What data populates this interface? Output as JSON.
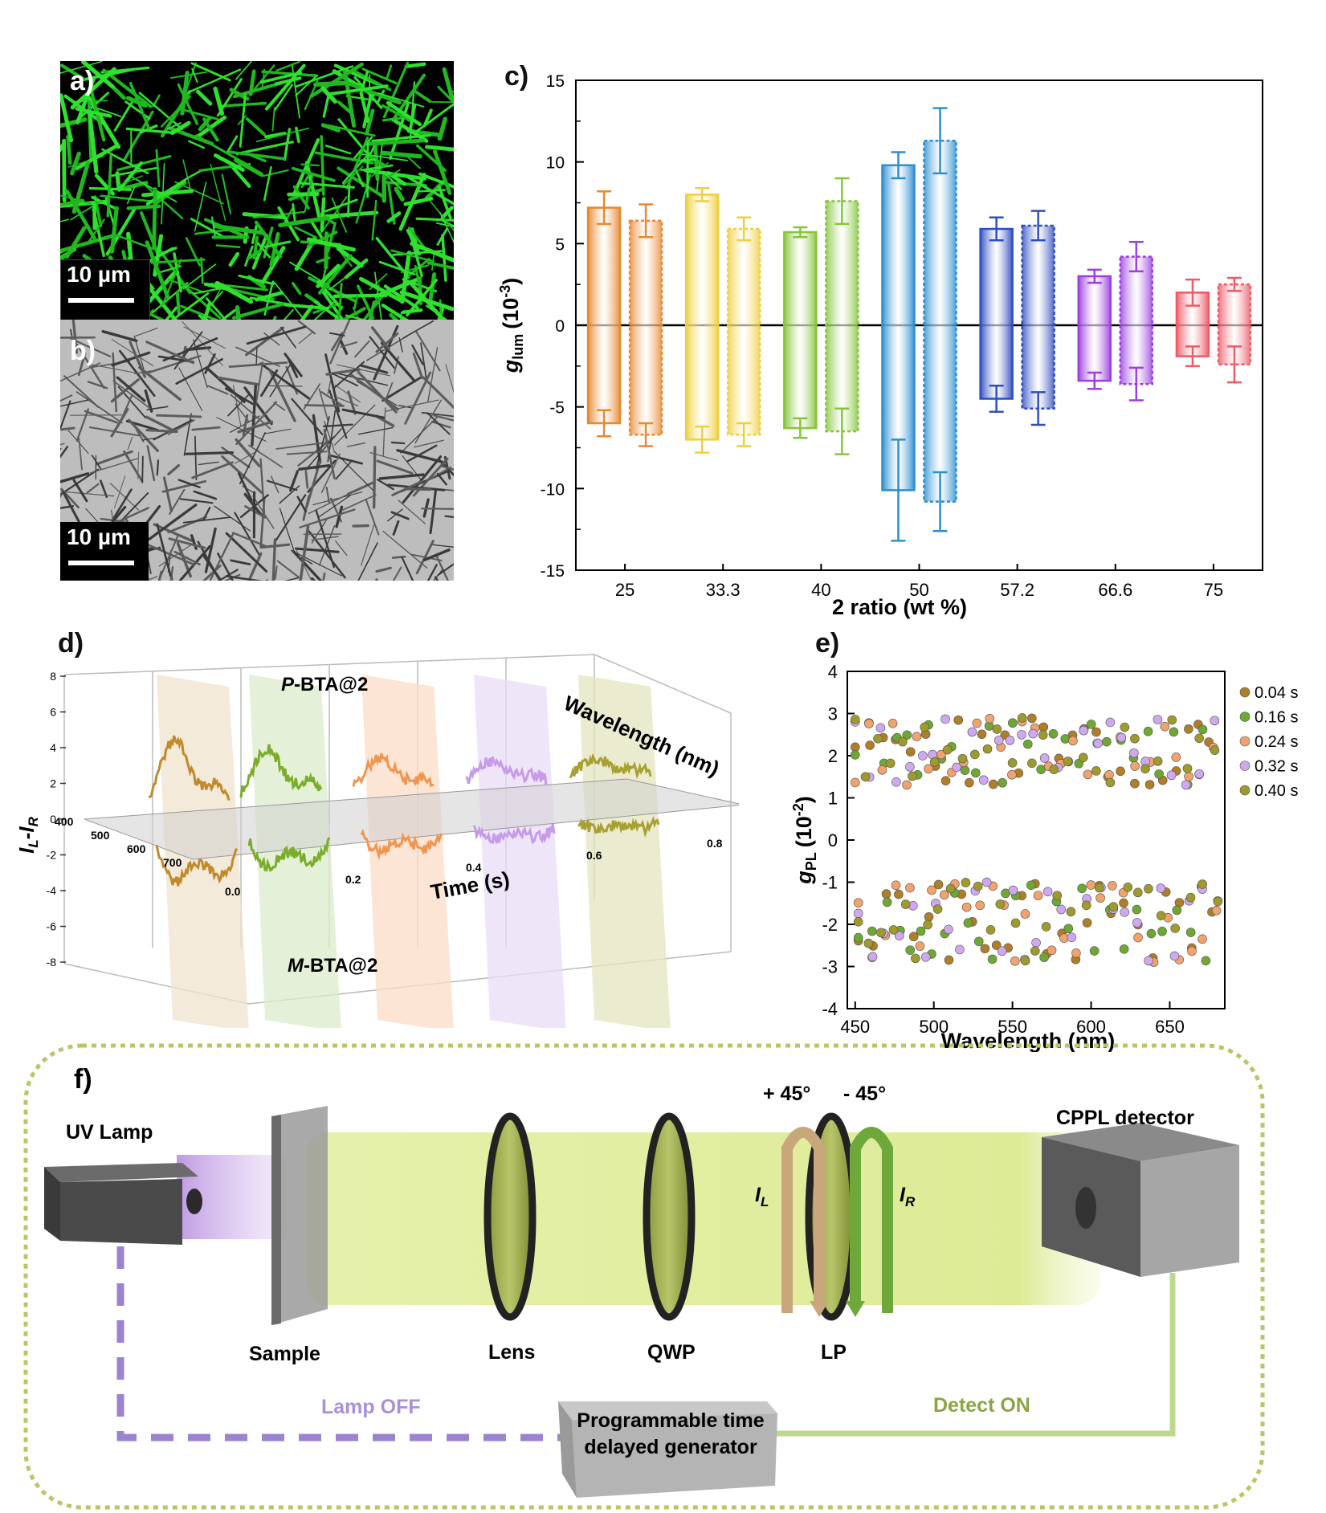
{
  "panel_a": {
    "label": "a)",
    "scale": "10 µm"
  },
  "panel_b": {
    "label": "b)",
    "scale": "10 µm"
  },
  "panel_c": {
    "label": "c)"
  },
  "panel_d": {
    "label": "d)"
  },
  "panel_e": {
    "label": "e)"
  },
  "panel_f": {
    "label": "f)"
  },
  "chart_data": [
    {
      "id": "c",
      "type": "bar",
      "xlabel": "2 ratio (wt %)",
      "ylabel_main": "g",
      "ylabel_sub": "lum",
      "ylabel_unit": "(10",
      "ylabel_exp": "-3",
      "ylabel_close": ")",
      "ylim": [
        -15,
        15
      ],
      "yticks": [
        "15",
        "10",
        "5",
        "0",
        "-5",
        "-10",
        "-15"
      ],
      "categories": [
        "25",
        "33.3",
        "40",
        "50",
        "57.2",
        "66.6",
        "75"
      ],
      "colors": [
        "#e8892e",
        "#efd03c",
        "#86c53b",
        "#2d8fd0",
        "#2f4ec0",
        "#9b3fe0",
        "#ee5a66"
      ],
      "groups": [
        {
          "bars": [
            {
              "top": 7.2,
              "bottom": -6.0,
              "top_err": 1.0,
              "bottom_err": 0.8
            },
            {
              "top": 6.4,
              "bottom": -6.7,
              "top_err": 1.0,
              "bottom_err": 0.7
            }
          ]
        },
        {
          "bars": [
            {
              "top": 8.0,
              "bottom": -7.0,
              "top_err": 0.4,
              "bottom_err": 0.8
            },
            {
              "top": 5.9,
              "bottom": -6.7,
              "top_err": 0.7,
              "bottom_err": 0.7
            }
          ]
        },
        {
          "bars": [
            {
              "top": 5.7,
              "bottom": -6.3,
              "top_err": 0.3,
              "bottom_err": 0.6
            },
            {
              "top": 7.6,
              "bottom": -6.5,
              "top_err": 1.4,
              "bottom_err": 1.4
            }
          ]
        },
        {
          "bars": [
            {
              "top": 9.8,
              "bottom": -10.1,
              "top_err": 0.8,
              "bottom_err": 3.1
            },
            {
              "top": 11.3,
              "bottom": -10.8,
              "top_err": 2.0,
              "bottom_err": 1.8
            }
          ]
        },
        {
          "bars": [
            {
              "top": 5.9,
              "bottom": -4.5,
              "top_err": 0.7,
              "bottom_err": 0.8
            },
            {
              "top": 6.1,
              "bottom": -5.1,
              "top_err": 0.9,
              "bottom_err": 1.0
            }
          ]
        },
        {
          "bars": [
            {
              "top": 3.0,
              "bottom": -3.4,
              "top_err": 0.4,
              "bottom_err": 0.5
            },
            {
              "top": 4.2,
              "bottom": -3.6,
              "top_err": 0.9,
              "bottom_err": 1.0
            }
          ]
        },
        {
          "bars": [
            {
              "top": 2.0,
              "bottom": -1.9,
              "top_err": 0.8,
              "bottom_err": 0.6
            },
            {
              "top": 2.5,
              "bottom": -2.4,
              "top_err": 0.4,
              "bottom_err": 1.1
            }
          ]
        }
      ]
    },
    {
      "id": "d",
      "type": "line",
      "ylabel": "IL-IR",
      "ylabel_html": {
        "a": "I",
        "a_sub": "L",
        "dash": "-",
        "b": "I",
        "b_sub": "R"
      },
      "zlabel": "Wavelength (nm)",
      "xlabel": "Time (s)",
      "yticks": [
        "8",
        "6",
        "4",
        "2",
        "0",
        "-2",
        "-4",
        "-6",
        "-8"
      ],
      "xticks": [
        "0.0",
        "0.2",
        "0.4",
        "0.6",
        "0.8"
      ],
      "zticks": [
        "400",
        "500",
        "600",
        "700"
      ],
      "annotation_top_prefix": "P",
      "annotation_top_suffix": "-BTA@2",
      "annotation_bottom_prefix": "M",
      "annotation_bottom_suffix": "-BTA@2",
      "series_colors": [
        "#c08a2a",
        "#7aad2a",
        "#f1954f",
        "#c79be8",
        "#a7a032"
      ],
      "plane_colors": [
        "#efe3cc",
        "#dbeccb",
        "#fbdcc5",
        "#e9dcf7",
        "#e4e4bf"
      ]
    },
    {
      "id": "e",
      "type": "scatter",
      "xlabel": "Wavelength (nm)",
      "ylabel_main": "g",
      "ylabel_sub": "PL",
      "ylabel_unit": "(10",
      "ylabel_exp": "-2",
      "ylabel_close": ")",
      "xlim": [
        445,
        685
      ],
      "ylim": [
        -4,
        4
      ],
      "xticks": [
        "450",
        "500",
        "550",
        "600",
        "650"
      ],
      "yticks": [
        "4",
        "3",
        "2",
        "1",
        "0",
        "-1",
        "-2",
        "-3",
        "-4"
      ],
      "series": [
        {
          "name": "0.04 s",
          "color": "#b07d28"
        },
        {
          "name": "0.16 s",
          "color": "#6ea832"
        },
        {
          "name": "0.24 s",
          "color": "#f2a26d"
        },
        {
          "name": "0.32 s",
          "color": "#cfa8f0"
        },
        {
          "name": "0.40 s",
          "color": "#9e9a2c"
        }
      ]
    }
  ],
  "setup": {
    "uv_lamp": "UV Lamp",
    "sample": "Sample",
    "lens": "Lens",
    "qwp": "QWP",
    "lp": "LP",
    "plus45": "+ 45°",
    "minus45": "- 45°",
    "il": "I",
    "il_sub": "L",
    "ir": "I",
    "ir_sub": "R",
    "detector": "CPPL detector",
    "lamp_off": "Lamp OFF",
    "detect_on": "Detect ON",
    "generator_line1": "Programmable time",
    "generator_line2": "delayed generator",
    "colors": {
      "beam": "#d9e98d",
      "uv": "#c9a6e6",
      "lamp_line": "#9b83cf",
      "detect_line": "#bcd88e",
      "border": "#b7c764"
    }
  }
}
